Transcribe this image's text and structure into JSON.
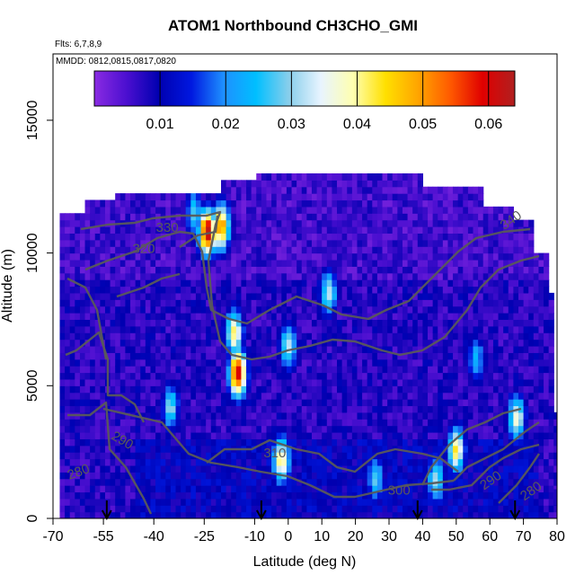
{
  "chart_data": {
    "type": "heatmap",
    "title": "ATOM1 Northbound CH3CHO_GMI",
    "subtitle_flights": "Flts: 6,7,8,9",
    "subtitle_dates": "MMDD: 0812,0815,0817,0820",
    "xlabel": "Latitude (deg N)",
    "ylabel": "Altitude (m)",
    "xlim": [
      -70,
      80
    ],
    "ylim": [
      0,
      17500
    ],
    "x_ticks": [
      "-70",
      "-55",
      "-40",
      "-25",
      "-10",
      "0",
      "10",
      "20",
      "30",
      "40",
      "50",
      "60",
      "70",
      "80"
    ],
    "x_tick_values": [
      -70,
      -55,
      -40,
      -25,
      -10,
      0,
      10,
      20,
      30,
      40,
      50,
      60,
      70,
      80
    ],
    "y_ticks": [
      "0",
      "5000",
      "10000",
      "15000"
    ],
    "y_tick_values": [
      0,
      5000,
      10000,
      15000
    ],
    "colorbar": {
      "min": 0.0,
      "max": 0.064,
      "tick_labels": [
        "0.01",
        "0.02",
        "0.03",
        "0.04",
        "0.05",
        "0.06"
      ],
      "tick_values": [
        0.01,
        0.02,
        0.03,
        0.04,
        0.05,
        0.06
      ],
      "colors": [
        "#8a2be2",
        "#4b0fd0",
        "#0000b0",
        "#0018e0",
        "#1e90ff",
        "#00bfff",
        "#87ceeb",
        "#e8f4ff",
        "#ffffb0",
        "#ffe000",
        "#ffa500",
        "#ff5a00",
        "#e00000",
        "#b02020"
      ]
    },
    "contours": [
      {
        "label": "280",
        "x": -62,
        "y": 1600
      },
      {
        "label": "290",
        "x": -50,
        "y": 2800
      },
      {
        "label": "300",
        "x": 33,
        "y": 900
      },
      {
        "label": "310",
        "x": -4,
        "y": 2300
      },
      {
        "label": "320",
        "x": -43,
        "y": 10000
      },
      {
        "label": "330",
        "x": -36,
        "y": 10800
      },
      {
        "label": "340",
        "x": 67,
        "y": 11100
      },
      {
        "label": "290",
        "x": 61,
        "y": 1300
      },
      {
        "label": "280",
        "x": 73,
        "y": 900
      }
    ],
    "flight_markers_x": [
      -54,
      -8,
      38.5,
      67.5
    ],
    "hotspots": [
      {
        "x": -24,
        "y": 10800,
        "value": 0.062
      },
      {
        "x": -20,
        "y": 11000,
        "value": 0.05
      },
      {
        "x": -15,
        "y": 5500,
        "value": 0.06
      },
      {
        "x": -16,
        "y": 7000,
        "value": 0.04
      },
      {
        "x": -2,
        "y": 2200,
        "value": 0.04
      },
      {
        "x": 50,
        "y": 2600,
        "value": 0.04
      },
      {
        "x": 12,
        "y": 8500,
        "value": 0.03
      },
      {
        "x": 0,
        "y": 6500,
        "value": 0.03
      },
      {
        "x": -35,
        "y": 4200,
        "value": 0.028
      },
      {
        "x": 68,
        "y": 3800,
        "value": 0.035
      },
      {
        "x": 56,
        "y": 6000,
        "value": 0.022
      },
      {
        "x": -28,
        "y": 11500,
        "value": 0.025
      },
      {
        "x": 26,
        "y": 1500,
        "value": 0.025
      },
      {
        "x": 44,
        "y": 1500,
        "value": 0.03
      }
    ]
  }
}
